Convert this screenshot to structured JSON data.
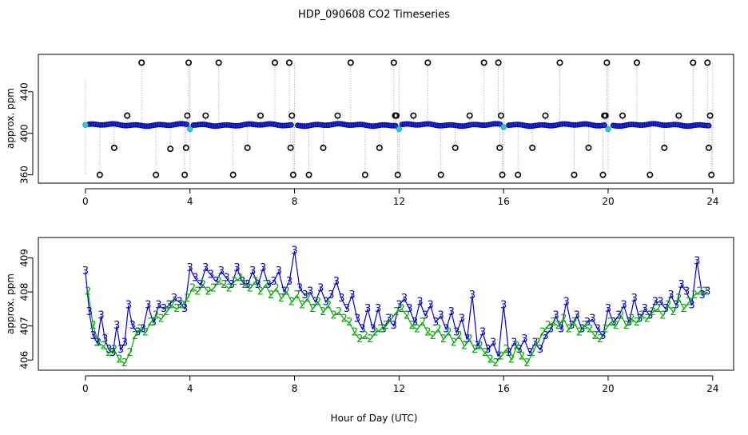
{
  "title": "HDP_090608  CO2 Timeseries",
  "xlabel": "Hour of Day (UTC)",
  "chart_data": [
    {
      "type": "scatter",
      "ylabel": "approx. ppm",
      "xlim": [
        -1.8,
        24.8
      ],
      "ylim": [
        352,
        476
      ],
      "xticks": [
        0,
        4,
        8,
        12,
        16,
        20,
        24
      ],
      "yticks": [
        360,
        400,
        440
      ],
      "yticklabels": [
        "360",
        "400",
        "440"
      ],
      "baseline_value": 408,
      "calibration_spikes": [
        {
          "x": 0.0,
          "levels": [
            450,
            360
          ]
        },
        {
          "x": 4.0,
          "levels": [
            468,
            360
          ]
        },
        {
          "x": 8.0,
          "levels": [
            468,
            360
          ]
        },
        {
          "x": 12.0,
          "levels": [
            468,
            360
          ]
        },
        {
          "x": 16.0,
          "levels": [
            468,
            360
          ]
        },
        {
          "x": 20.0,
          "levels": [
            468,
            360
          ]
        },
        {
          "x": 24.0,
          "levels": [
            468,
            360
          ]
        }
      ],
      "reference_points": {
        "x": [
          0.55,
          1.1,
          1.6,
          2.15,
          2.7,
          3.25,
          3.8,
          3.85,
          3.9,
          3.95,
          4.6,
          5.1,
          5.65,
          6.2,
          6.7,
          7.25,
          7.8,
          7.85,
          7.9,
          7.95,
          8.55,
          9.1,
          9.65,
          10.15,
          10.7,
          11.25,
          11.8,
          11.85,
          11.9,
          11.95,
          12.55,
          13.1,
          13.6,
          14.15,
          14.7,
          15.25,
          15.8,
          15.85,
          15.9,
          15.95,
          16.55,
          17.1,
          17.6,
          18.15,
          18.7,
          19.25,
          19.8,
          19.85,
          19.9,
          19.95,
          20.55,
          21.1,
          21.6,
          22.15,
          22.7,
          23.25,
          23.8,
          23.85,
          23.9,
          23.95
        ],
        "y": [
          360,
          386,
          417,
          468,
          360,
          385,
          360,
          386,
          417,
          468,
          417,
          468,
          360,
          386,
          417,
          468,
          468,
          386,
          417,
          360,
          360,
          386,
          417,
          468,
          360,
          386,
          468,
          417,
          417,
          360,
          417,
          468,
          360,
          386,
          417,
          468,
          468,
          386,
          417,
          360,
          360,
          386,
          417,
          468,
          360,
          386,
          360,
          417,
          417,
          468,
          417,
          468,
          360,
          386,
          417,
          468,
          468,
          386,
          417,
          360
        ]
      },
      "cyan_points": {
        "x": [
          0.0,
          4.0,
          12.0,
          16.0,
          20.0
        ],
        "y": [
          408,
          404,
          404,
          406,
          404
        ]
      }
    },
    {
      "type": "line",
      "ylabel": "approx. ppm",
      "xlim": [
        -1.8,
        24.8
      ],
      "ylim": [
        405.7,
        409.6
      ],
      "xticks": [
        0,
        4,
        8,
        12,
        16,
        20,
        24
      ],
      "yticks": [
        406,
        407,
        408,
        409
      ],
      "series": [
        {
          "name": "3",
          "color": "#0000cc",
          "x": [
            0.0,
            0.15,
            0.3,
            0.45,
            0.6,
            0.75,
            0.9,
            1.05,
            1.2,
            1.35,
            1.5,
            1.65,
            1.8,
            2.0,
            2.2,
            2.4,
            2.6,
            2.8,
            3.0,
            3.2,
            3.4,
            3.6,
            3.8,
            4.0,
            4.2,
            4.4,
            4.6,
            4.8,
            5.0,
            5.2,
            5.4,
            5.6,
            5.8,
            6.0,
            6.2,
            6.4,
            6.6,
            6.8,
            7.0,
            7.2,
            7.4,
            7.6,
            7.8,
            8.0,
            8.2,
            8.4,
            8.6,
            8.8,
            9.0,
            9.2,
            9.4,
            9.6,
            9.8,
            10.0,
            10.2,
            10.4,
            10.6,
            10.8,
            11.0,
            11.2,
            11.4,
            11.6,
            11.8,
            12.0,
            12.2,
            12.4,
            12.6,
            12.8,
            13.0,
            13.2,
            13.4,
            13.6,
            13.8,
            14.0,
            14.2,
            14.4,
            14.6,
            14.8,
            15.0,
            15.2,
            15.4,
            15.6,
            15.8,
            16.0,
            16.2,
            16.4,
            16.6,
            16.8,
            17.0,
            17.2,
            17.4,
            17.6,
            17.8,
            18.0,
            18.2,
            18.4,
            18.6,
            18.8,
            19.0,
            19.2,
            19.4,
            19.6,
            19.8,
            20.0,
            20.2,
            20.4,
            20.6,
            20.8,
            21.0,
            21.2,
            21.4,
            21.6,
            21.8,
            22.0,
            22.2,
            22.4,
            22.6,
            22.8,
            23.0,
            23.2,
            23.4,
            23.6,
            23.8
          ],
          "y": [
            408.6,
            407.4,
            406.7,
            406.5,
            407.3,
            406.6,
            406.3,
            406.2,
            407.0,
            406.3,
            406.5,
            407.6,
            407.0,
            406.8,
            406.9,
            407.6,
            407.1,
            407.6,
            407.5,
            407.6,
            407.8,
            407.7,
            407.5,
            408.7,
            408.4,
            408.2,
            408.7,
            408.5,
            408.3,
            408.6,
            408.4,
            408.2,
            408.7,
            408.3,
            408.2,
            408.6,
            408.2,
            408.7,
            408.2,
            408.3,
            408.6,
            408.0,
            408.3,
            409.2,
            408.1,
            407.9,
            408.0,
            407.7,
            408.1,
            407.7,
            407.9,
            408.3,
            407.8,
            407.5,
            407.9,
            407.2,
            406.9,
            407.5,
            406.9,
            407.5,
            406.9,
            407.2,
            407.0,
            407.6,
            407.8,
            407.5,
            407.1,
            407.7,
            407.3,
            407.6,
            407.1,
            407.3,
            406.9,
            407.4,
            406.8,
            407.2,
            406.6,
            407.9,
            406.4,
            406.8,
            406.3,
            406.5,
            406.1,
            407.6,
            406.2,
            406.5,
            406.3,
            406.6,
            406.2,
            406.5,
            406.3,
            406.7,
            406.9,
            407.3,
            406.9,
            407.7,
            407.0,
            407.3,
            406.9,
            407.1,
            407.2,
            406.9,
            406.7,
            407.5,
            407.1,
            407.3,
            407.6,
            407.1,
            407.8,
            407.2,
            407.5,
            407.3,
            407.7,
            407.7,
            407.5,
            407.9,
            407.6,
            408.2,
            408.0,
            407.6,
            408.9,
            407.9,
            408.0
          ]
        },
        {
          "name": "2",
          "color": "#00aa00",
          "x": [
            0.1,
            0.3,
            0.5,
            0.7,
            0.9,
            1.1,
            1.3,
            1.5,
            1.7,
            1.9,
            2.1,
            2.3,
            2.5,
            2.7,
            2.9,
            3.1,
            3.3,
            3.5,
            3.7,
            3.9,
            4.1,
            4.3,
            4.5,
            4.7,
            4.9,
            5.1,
            5.3,
            5.5,
            5.7,
            5.9,
            6.1,
            6.3,
            6.5,
            6.7,
            6.9,
            7.1,
            7.3,
            7.5,
            7.7,
            7.9,
            8.1,
            8.3,
            8.5,
            8.7,
            8.9,
            9.1,
            9.3,
            9.5,
            9.7,
            9.9,
            10.1,
            10.3,
            10.5,
            10.7,
            10.9,
            11.1,
            11.3,
            11.5,
            11.7,
            11.9,
            12.1,
            12.3,
            12.5,
            12.7,
            12.9,
            13.1,
            13.3,
            13.5,
            13.7,
            13.9,
            14.1,
            14.3,
            14.5,
            14.7,
            14.9,
            15.1,
            15.3,
            15.5,
            15.7,
            15.9,
            16.1,
            16.3,
            16.5,
            16.7,
            16.9,
            17.1,
            17.3,
            17.5,
            17.7,
            17.9,
            18.1,
            18.3,
            18.5,
            18.7,
            18.9,
            19.1,
            19.3,
            19.5,
            19.7,
            19.9,
            20.1,
            20.3,
            20.5,
            20.7,
            20.9,
            21.1,
            21.3,
            21.5,
            21.7,
            21.9,
            22.1,
            22.3,
            22.5,
            22.7,
            22.9,
            23.1,
            23.3,
            23.5,
            23.7
          ],
          "y": [
            408.0,
            407.0,
            406.5,
            406.4,
            406.2,
            406.3,
            406.0,
            405.9,
            406.2,
            406.7,
            406.9,
            406.8,
            407.1,
            407.3,
            407.2,
            407.4,
            407.6,
            407.5,
            407.6,
            407.8,
            408.1,
            408.0,
            408.2,
            408.0,
            408.1,
            408.3,
            408.2,
            408.1,
            408.3,
            408.4,
            408.2,
            408.1,
            408.3,
            408.0,
            408.2,
            407.9,
            408.1,
            407.8,
            408.0,
            407.7,
            407.9,
            407.6,
            407.8,
            407.5,
            407.7,
            407.4,
            407.6,
            407.3,
            407.4,
            407.2,
            407.1,
            406.8,
            406.6,
            406.7,
            406.6,
            406.8,
            406.9,
            407.0,
            407.2,
            407.4,
            407.5,
            407.3,
            407.0,
            406.9,
            407.1,
            406.8,
            406.7,
            406.9,
            406.6,
            406.8,
            406.5,
            406.7,
            406.4,
            406.6,
            406.3,
            406.4,
            406.2,
            406.0,
            405.9,
            406.1,
            406.3,
            406.0,
            406.4,
            406.1,
            405.9,
            406.2,
            406.5,
            406.8,
            407.0,
            407.1,
            407.0,
            407.2,
            406.9,
            407.1,
            406.8,
            407.0,
            406.9,
            406.7,
            406.6,
            406.9,
            407.1,
            407.0,
            407.3,
            407.0,
            407.2,
            407.1,
            407.3,
            407.2,
            407.4,
            407.5,
            407.3,
            407.6,
            407.4,
            407.8,
            407.5,
            407.7,
            407.9,
            408.0,
            408.0
          ]
        }
      ]
    }
  ]
}
